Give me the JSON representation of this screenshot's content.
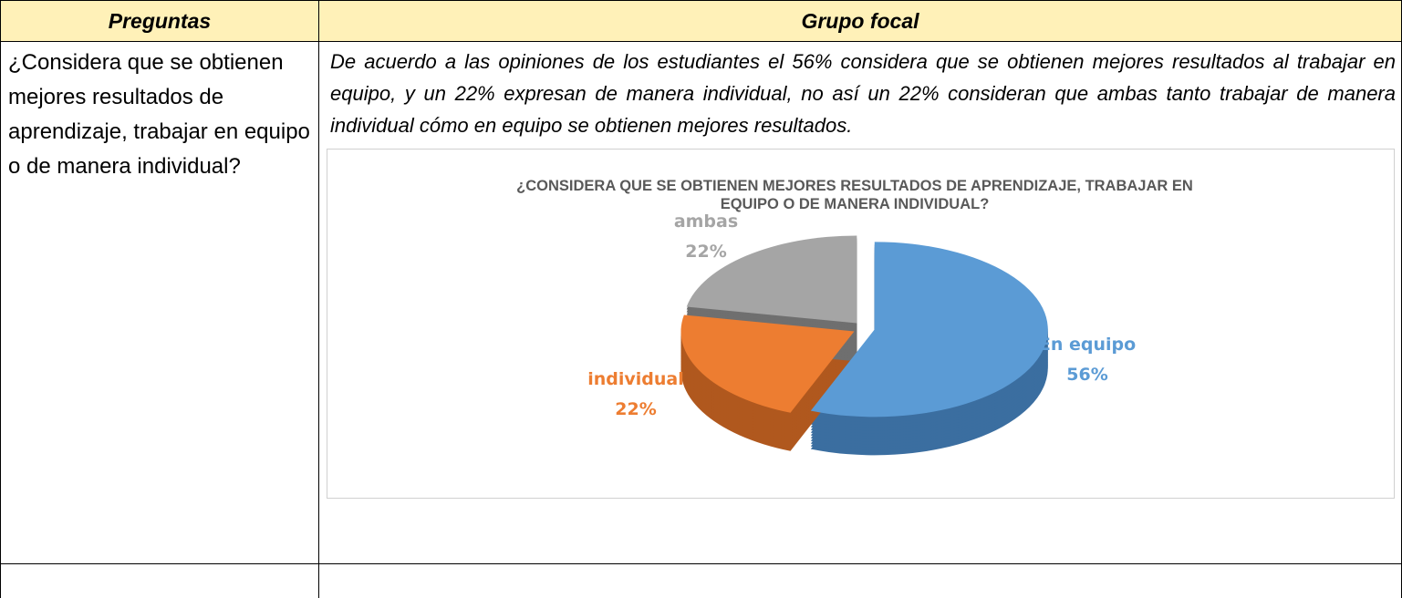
{
  "table": {
    "header": [
      "Preguntas",
      "Grupo focal"
    ],
    "rows": [
      [
        "¿Considera que se obtienen mejores resultados de aprendizaje, trabajar en equipo o de manera individual?",
        "De acuerdo a las opiniones de los estudiantes el 56% considera que se obtienen mejores resultados al trabajar en equipo, y un 22% expresan de manera individual, no así un 22% consideran que ambas tanto trabajar de manera individual cómo en equipo se obtienen mejores resultados."
      ]
    ]
  },
  "chart_data": {
    "type": "pie",
    "title": "¿CONSIDERA QUE SE OBTIENEN MEJORES RESULTADOS DE APRENDIZAJE, TRABAJAR EN EQUIPO O DE MANERA INDIVIDUAL?",
    "categories": [
      "En equipo",
      "individual",
      "ambas"
    ],
    "values": [
      56,
      22,
      22
    ],
    "value_labels": [
      "56%",
      "22%",
      "22%"
    ],
    "colors": [
      "#5b9bd5",
      "#ed7d31",
      "#a5a5a5"
    ],
    "side_colors": [
      "#3b6ea0",
      "#b0581e",
      "#6f6f6f"
    ]
  }
}
